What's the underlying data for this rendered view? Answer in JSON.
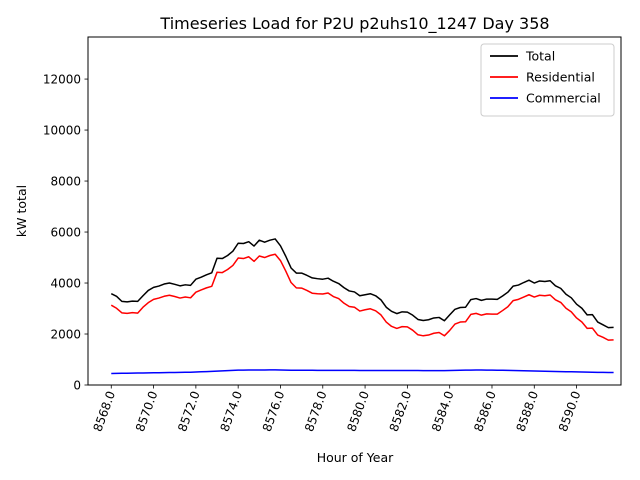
{
  "chart_data": {
    "type": "line",
    "title": "Timeseries Load for P2U p2uhs10_1247  Day 358",
    "xlabel": "Hour of Year",
    "ylabel": "kW total",
    "xlim": [
      8566.9,
      8592.1
    ],
    "ylim": [
      0,
      13650
    ],
    "yticks": [
      0,
      2000,
      4000,
      6000,
      8000,
      10000,
      12000
    ],
    "xticks": [
      8568,
      8570,
      8572,
      8574,
      8576,
      8578,
      8580,
      8582,
      8584,
      8586,
      8588,
      8590
    ],
    "ytick_labels": [
      "0",
      "2000",
      "4000",
      "6000",
      "8000",
      "10000",
      "12000"
    ],
    "xtick_labels": [
      "8568.0",
      "8570.0",
      "8572.0",
      "8574.0",
      "8576.0",
      "8578.0",
      "8580.0",
      "8582.0",
      "8584.0",
      "8586.0",
      "8588.0",
      "8590.0"
    ],
    "legend_position": "top-right",
    "x_start": 8568.0,
    "x_step": 0.25,
    "series": [
      {
        "name": "Total",
        "color": "#000000",
        "values": [
          3580,
          3480,
          3280,
          3260,
          3290,
          3280,
          3500,
          3710,
          3830,
          3880,
          3960,
          4000,
          3950,
          3890,
          3930,
          3910,
          4150,
          4230,
          4320,
          4400,
          4970,
          4960,
          5080,
          5250,
          5560,
          5550,
          5620,
          5450,
          5680,
          5600,
          5680,
          5730,
          5460,
          5050,
          4590,
          4390,
          4390,
          4300,
          4200,
          4170,
          4150,
          4190,
          4070,
          3980,
          3820,
          3690,
          3650,
          3500,
          3540,
          3580,
          3500,
          3340,
          3050,
          2890,
          2800,
          2870,
          2860,
          2740,
          2570,
          2530,
          2560,
          2630,
          2650,
          2520,
          2750,
          2970,
          3040,
          3050,
          3350,
          3390,
          3320,
          3370,
          3370,
          3360,
          3490,
          3640,
          3880,
          3920,
          4020,
          4110,
          4000,
          4080,
          4060,
          4090,
          3890,
          3790,
          3560,
          3420,
          3170,
          3010,
          2750,
          2760,
          2470,
          2360,
          2250,
          2260
        ]
      },
      {
        "name": "Residential",
        "color": "#ff0000",
        "values": [
          3130,
          3010,
          2830,
          2810,
          2840,
          2820,
          3050,
          3230,
          3360,
          3410,
          3480,
          3520,
          3470,
          3410,
          3450,
          3420,
          3640,
          3730,
          3810,
          3870,
          4420,
          4410,
          4530,
          4690,
          4980,
          4960,
          5030,
          4850,
          5060,
          5000,
          5080,
          5130,
          4880,
          4470,
          4020,
          3810,
          3800,
          3710,
          3600,
          3580,
          3570,
          3610,
          3470,
          3390,
          3210,
          3080,
          3050,
          2900,
          2950,
          2990,
          2910,
          2750,
          2470,
          2300,
          2220,
          2290,
          2280,
          2150,
          1970,
          1930,
          1960,
          2030,
          2060,
          1930,
          2140,
          2390,
          2470,
          2480,
          2770,
          2810,
          2740,
          2790,
          2780,
          2780,
          2920,
          3070,
          3310,
          3360,
          3450,
          3540,
          3450,
          3520,
          3500,
          3530,
          3340,
          3240,
          3010,
          2870,
          2630,
          2470,
          2220,
          2230,
          1960,
          1870,
          1760,
          1770
        ]
      },
      {
        "name": "Commercial",
        "color": "#0000ff",
        "values": [
          450,
          455,
          460,
          463,
          466,
          469,
          472,
          476,
          480,
          483,
          486,
          489,
          492,
          495,
          498,
          502,
          510,
          518,
          526,
          535,
          545,
          555,
          563,
          572,
          582,
          585,
          588,
          589,
          590,
          590,
          591,
          591,
          588,
          584,
          580,
          578,
          578,
          577,
          577,
          576,
          576,
          575,
          575,
          574,
          574,
          573,
          572,
          571,
          571,
          570,
          570,
          569,
          569,
          568,
          568,
          568,
          567,
          567,
          567,
          566,
          566,
          566,
          566,
          566,
          570,
          575,
          580,
          583,
          585,
          586,
          586,
          585,
          583,
          580,
          577,
          574,
          570,
          565,
          560,
          555,
          550,
          545,
          540,
          535,
          530,
          526,
          522,
          518,
          514,
          510,
          505,
          500,
          497,
          494,
          491,
          490
        ]
      }
    ]
  }
}
